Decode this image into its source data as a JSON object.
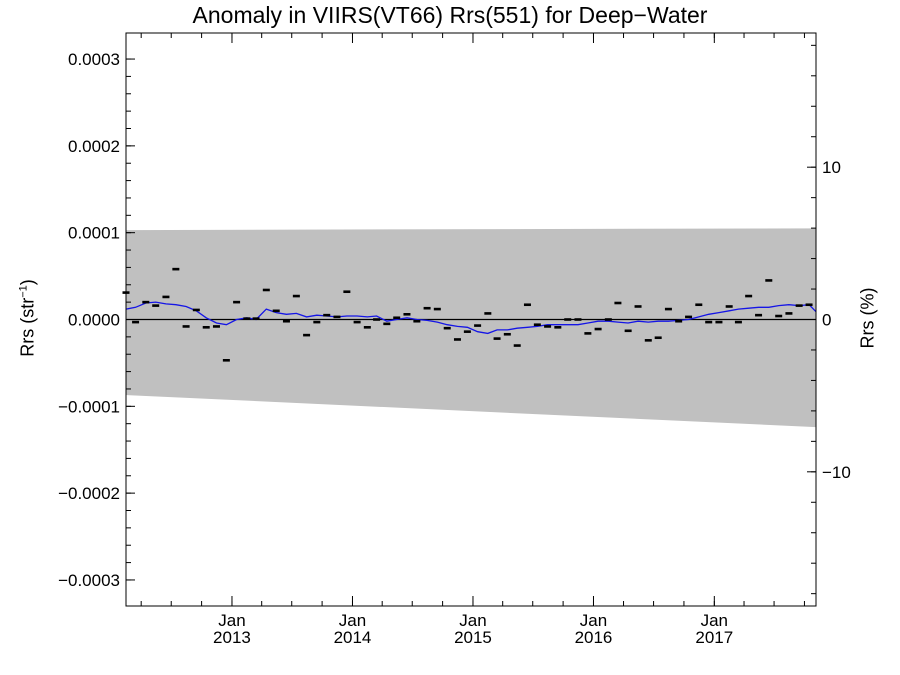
{
  "chart_data": {
    "type": "scatter",
    "title": "Anomaly in VIIRS(VT66) Rrs(551) for Deep−Water",
    "ylabel_left_main": "Rrs (str",
    "ylabel_left_sup": "−1",
    "ylabel_left_end": ")",
    "ylabel_right": "Rrs (%)",
    "x_range": [
      "2012-02-15",
      "2017-11-05"
    ],
    "ylim_left": [
      -0.00033,
      0.00033
    ],
    "ylim_right": [
      -18.81,
      18.81
    ],
    "yticks_left": [
      {
        "value": 0.0003,
        "label": "0.0003"
      },
      {
        "value": 0.0002,
        "label": "0.0002"
      },
      {
        "value": 0.0001,
        "label": "0.0001"
      },
      {
        "value": 0.0,
        "label": "0.0000"
      },
      {
        "value": -0.0001,
        "label": "−0.0001"
      },
      {
        "value": -0.0002,
        "label": "−0.0002"
      },
      {
        "value": -0.0003,
        "label": "−0.0003"
      }
    ],
    "yticks_right": [
      {
        "value": 10,
        "label": "10"
      },
      {
        "value": 0,
        "label": "0"
      },
      {
        "value": -10,
        "label": "−10"
      }
    ],
    "xticks": [
      {
        "date": "2013-01-01",
        "month": "Jan",
        "year": "2013"
      },
      {
        "date": "2014-01-01",
        "month": "Jan",
        "year": "2014"
      },
      {
        "date": "2015-01-01",
        "month": "Jan",
        "year": "2015"
      },
      {
        "date": "2016-01-01",
        "month": "Jan",
        "year": "2016"
      },
      {
        "date": "2017-01-01",
        "month": "Jan",
        "year": "2017"
      }
    ],
    "tolerance_band": {
      "color": "#c0c0c0",
      "upper": [
        [
          "2012-02-15",
          0.000103
        ],
        [
          "2017-11-05",
          0.000105
        ]
      ],
      "lower": [
        [
          "2012-02-15",
          -8.7e-05
        ],
        [
          "2017-11-05",
          -0.000124
        ]
      ]
    },
    "zero_line": 0.0,
    "points": {
      "color": "#000000",
      "data": [
        [
          "2012-02-15",
          3.1e-05
        ],
        [
          "2012-03-15",
          -3e-06
        ],
        [
          "2012-04-15",
          2e-05
        ],
        [
          "2012-05-15",
          1.6e-05
        ],
        [
          "2012-06-15",
          2.6e-05
        ],
        [
          "2012-07-15",
          5.8e-05
        ],
        [
          "2012-08-15",
          -8e-06
        ],
        [
          "2012-09-15",
          1.1e-05
        ],
        [
          "2012-10-15",
          -9e-06
        ],
        [
          "2012-11-15",
          -8e-06
        ],
        [
          "2012-12-15",
          -4.7e-05
        ],
        [
          "2013-01-15",
          2e-05
        ],
        [
          "2013-02-15",
          1e-06
        ],
        [
          "2013-03-15",
          1e-06
        ],
        [
          "2013-04-15",
          3.4e-05
        ],
        [
          "2013-05-15",
          1e-05
        ],
        [
          "2013-06-15",
          -2e-06
        ],
        [
          "2013-07-15",
          2.7e-05
        ],
        [
          "2013-08-15",
          -1.8e-05
        ],
        [
          "2013-09-15",
          -3e-06
        ],
        [
          "2013-10-15",
          5e-06
        ],
        [
          "2013-11-15",
          3e-06
        ],
        [
          "2013-12-15",
          3.2e-05
        ],
        [
          "2014-01-15",
          -3e-06
        ],
        [
          "2014-02-15",
          -9e-06
        ],
        [
          "2014-03-15",
          0.0
        ],
        [
          "2014-04-15",
          -5e-06
        ],
        [
          "2014-05-15",
          2e-06
        ],
        [
          "2014-06-15",
          6e-06
        ],
        [
          "2014-07-15",
          -2e-06
        ],
        [
          "2014-08-15",
          1.3e-05
        ],
        [
          "2014-09-15",
          1.2e-05
        ],
        [
          "2014-10-15",
          -1e-05
        ],
        [
          "2014-11-15",
          -2.3e-05
        ],
        [
          "2014-12-15",
          -1.4e-05
        ],
        [
          "2015-01-15",
          -7e-06
        ],
        [
          "2015-02-15",
          7e-06
        ],
        [
          "2015-03-15",
          -2.2e-05
        ],
        [
          "2015-04-15",
          -1.7e-05
        ],
        [
          "2015-05-15",
          -3e-05
        ],
        [
          "2015-06-15",
          1.7e-05
        ],
        [
          "2015-07-15",
          -6e-06
        ],
        [
          "2015-08-15",
          -8e-06
        ],
        [
          "2015-09-15",
          -9e-06
        ],
        [
          "2015-10-15",
          0.0
        ],
        [
          "2015-11-15",
          0.0
        ],
        [
          "2015-12-15",
          -1.6e-05
        ],
        [
          "2016-01-15",
          -1.1e-05
        ],
        [
          "2016-02-15",
          0.0
        ],
        [
          "2016-03-15",
          1.9e-05
        ],
        [
          "2016-04-15",
          -1.3e-05
        ],
        [
          "2016-05-15",
          1.5e-05
        ],
        [
          "2016-06-15",
          -2.4e-05
        ],
        [
          "2016-07-15",
          -2.1e-05
        ],
        [
          "2016-08-15",
          1.2e-05
        ],
        [
          "2016-09-15",
          -2e-06
        ],
        [
          "2016-10-15",
          3e-06
        ],
        [
          "2016-11-15",
          1.7e-05
        ],
        [
          "2016-12-15",
          -3e-06
        ],
        [
          "2017-01-15",
          -3e-06
        ],
        [
          "2017-02-15",
          1.5e-05
        ],
        [
          "2017-03-15",
          -3e-06
        ],
        [
          "2017-04-15",
          2.7e-05
        ],
        [
          "2017-05-15",
          5e-06
        ],
        [
          "2017-06-15",
          4.5e-05
        ],
        [
          "2017-07-15",
          4e-06
        ],
        [
          "2017-08-15",
          7e-06
        ],
        [
          "2017-09-15",
          1.6e-05
        ],
        [
          "2017-10-15",
          1.7e-05
        ]
      ]
    },
    "moving_average": {
      "color": "#1515e6",
      "data": [
        [
          "2012-02-15",
          1.2e-05
        ],
        [
          "2012-03-15",
          1.4e-05
        ],
        [
          "2012-04-15",
          1.9e-05
        ],
        [
          "2012-05-15",
          2e-05
        ],
        [
          "2012-06-15",
          1.8e-05
        ],
        [
          "2012-07-15",
          1.7e-05
        ],
        [
          "2012-08-15",
          1.5e-05
        ],
        [
          "2012-09-15",
          1e-05
        ],
        [
          "2012-10-15",
          2e-06
        ],
        [
          "2012-11-15",
          -4e-06
        ],
        [
          "2012-12-15",
          -6e-06
        ],
        [
          "2013-01-15",
          0.0
        ],
        [
          "2013-02-15",
          2e-06
        ],
        [
          "2013-03-15",
          0.0
        ],
        [
          "2013-04-15",
          1.2e-05
        ],
        [
          "2013-05-15",
          8e-06
        ],
        [
          "2013-06-15",
          6e-06
        ],
        [
          "2013-07-15",
          7e-06
        ],
        [
          "2013-08-15",
          3e-06
        ],
        [
          "2013-09-15",
          5e-06
        ],
        [
          "2013-10-15",
          4e-06
        ],
        [
          "2013-11-15",
          3e-06
        ],
        [
          "2013-12-15",
          4e-06
        ],
        [
          "2014-01-15",
          4e-06
        ],
        [
          "2014-02-15",
          3e-06
        ],
        [
          "2014-03-15",
          4e-06
        ],
        [
          "2014-04-15",
          -2e-06
        ],
        [
          "2014-05-15",
          0.0
        ],
        [
          "2014-06-15",
          2e-06
        ],
        [
          "2014-07-15",
          0.0
        ],
        [
          "2014-08-15",
          -1e-06
        ],
        [
          "2014-09-15",
          -3e-06
        ],
        [
          "2014-10-15",
          -6e-06
        ],
        [
          "2014-11-15",
          -8e-06
        ],
        [
          "2014-12-15",
          -9e-06
        ],
        [
          "2015-01-15",
          -1.4e-05
        ],
        [
          "2015-02-15",
          -1.6e-05
        ],
        [
          "2015-03-15",
          -1.2e-05
        ],
        [
          "2015-04-15",
          -1.2e-05
        ],
        [
          "2015-05-15",
          -1e-05
        ],
        [
          "2015-06-15",
          -9e-06
        ],
        [
          "2015-07-15",
          -8e-06
        ],
        [
          "2015-08-15",
          -6e-06
        ],
        [
          "2015-09-15",
          -6e-06
        ],
        [
          "2015-10-15",
          -6e-06
        ],
        [
          "2015-11-15",
          -6e-06
        ],
        [
          "2015-12-15",
          -4e-06
        ],
        [
          "2016-01-15",
          -2e-06
        ],
        [
          "2016-02-15",
          -2e-06
        ],
        [
          "2016-03-15",
          -3e-06
        ],
        [
          "2016-04-15",
          -4e-06
        ],
        [
          "2016-05-15",
          -2e-06
        ],
        [
          "2016-06-15",
          -3e-06
        ],
        [
          "2016-07-15",
          -2e-06
        ],
        [
          "2016-08-15",
          -2e-06
        ],
        [
          "2016-09-15",
          -1e-06
        ],
        [
          "2016-10-15",
          0.0
        ],
        [
          "2016-11-15",
          3e-06
        ],
        [
          "2016-12-15",
          6e-06
        ],
        [
          "2017-01-15",
          8e-06
        ],
        [
          "2017-02-15",
          1e-05
        ],
        [
          "2017-03-15",
          1.2e-05
        ],
        [
          "2017-04-15",
          1.3e-05
        ],
        [
          "2017-05-15",
          1.4e-05
        ],
        [
          "2017-06-15",
          1.4e-05
        ],
        [
          "2017-07-15",
          1.6e-05
        ],
        [
          "2017-08-15",
          1.7e-05
        ],
        [
          "2017-09-15",
          1.6e-05
        ],
        [
          "2017-10-15",
          1.7e-05
        ],
        [
          "2017-11-05",
          9e-06
        ]
      ]
    }
  }
}
